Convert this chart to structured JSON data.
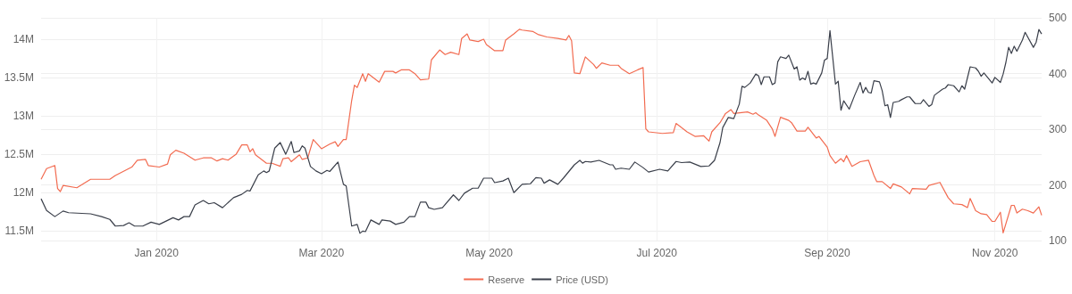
{
  "chart_data": {
    "type": "line",
    "xlim": [
      "2019-11-20",
      "2020-11-18"
    ],
    "xticks": [
      {
        "value": "2020-01-01",
        "label": "Jan 2020"
      },
      {
        "value": "2020-03-01",
        "label": "Mar 2020"
      },
      {
        "value": "2020-05-01",
        "label": "May 2020"
      },
      {
        "value": "2020-07-01",
        "label": "Jul 2020"
      },
      {
        "value": "2020-09-01",
        "label": "Sep 2020"
      },
      {
        "value": "2020-11-01",
        "label": "Nov 2020"
      }
    ],
    "ylim": [
      11.37,
      14.28
    ],
    "yticks": [
      {
        "value": 11.5,
        "label": "11.5M"
      },
      {
        "value": 12,
        "label": "12M"
      },
      {
        "value": 12.5,
        "label": "12.5M"
      },
      {
        "value": 13,
        "label": "13M"
      },
      {
        "value": 13.5,
        "label": "13.5M"
      },
      {
        "value": 14,
        "label": "14M"
      }
    ],
    "y2lim": [
      100,
      500
    ],
    "y2ticks": [
      100,
      200,
      300,
      400,
      500
    ],
    "grid": true,
    "legend": "bottom",
    "marker": "none",
    "series": [
      {
        "name": "Reserve",
        "color": "#f26b50",
        "x": [
          "2019-11-20",
          "2019-11-22",
          "2019-11-25",
          "2019-11-26",
          "2019-11-27",
          "2019-11-28",
          "2019-12-03",
          "2019-12-08",
          "2019-12-15",
          "2019-12-17",
          "2019-12-23",
          "2019-12-25",
          "2019-12-28",
          "2019-12-29",
          "2020-01-02",
          "2020-01-05",
          "2020-01-06",
          "2020-01-08",
          "2020-01-11",
          "2020-01-15",
          "2020-01-18",
          "2020-01-21",
          "2020-01-23",
          "2020-01-25",
          "2020-01-27",
          "2020-01-30",
          "2020-02-01",
          "2020-02-03",
          "2020-02-04",
          "2020-02-05",
          "2020-02-06",
          "2020-02-10",
          "2020-02-12",
          "2020-02-15",
          "2020-02-16",
          "2020-02-18",
          "2020-02-19",
          "2020-02-22",
          "2020-02-23",
          "2020-02-25",
          "2020-02-27",
          "2020-03-01",
          "2020-03-04",
          "2020-03-06",
          "2020-03-07",
          "2020-03-09",
          "2020-03-10",
          "2020-03-12",
          "2020-03-13",
          "2020-03-14",
          "2020-03-16",
          "2020-03-17",
          "2020-03-18",
          "2020-03-22",
          "2020-03-24",
          "2020-03-27",
          "2020-03-28",
          "2020-03-30",
          "2020-04-02",
          "2020-04-04",
          "2020-04-06",
          "2020-04-09",
          "2020-04-10",
          "2020-04-13",
          "2020-04-15",
          "2020-04-17",
          "2020-04-20",
          "2020-04-21",
          "2020-04-23",
          "2020-04-24",
          "2020-04-27",
          "2020-04-29",
          "2020-04-30",
          "2020-05-03",
          "2020-05-06",
          "2020-05-07",
          "2020-05-10",
          "2020-05-12",
          "2020-05-13",
          "2020-05-17",
          "2020-05-19",
          "2020-05-22",
          "2020-05-26",
          "2020-05-29",
          "2020-05-30",
          "2020-05-31",
          "2020-06-01",
          "2020-06-03",
          "2020-06-05",
          "2020-06-08",
          "2020-06-09",
          "2020-06-11",
          "2020-06-14",
          "2020-06-17",
          "2020-06-18",
          "2020-06-21",
          "2020-06-24",
          "2020-06-26",
          "2020-06-27",
          "2020-06-28",
          "2020-07-03",
          "2020-07-07",
          "2020-07-08",
          "2020-07-12",
          "2020-07-15",
          "2020-07-18",
          "2020-07-20",
          "2020-07-21",
          "2020-07-24",
          "2020-07-26",
          "2020-07-28",
          "2020-07-29",
          "2020-08-03",
          "2020-08-05",
          "2020-08-06",
          "2020-08-07",
          "2020-08-10",
          "2020-08-12",
          "2020-08-13",
          "2020-08-15",
          "2020-08-18",
          "2020-08-19",
          "2020-08-21",
          "2020-08-24",
          "2020-08-25",
          "2020-08-28",
          "2020-08-29",
          "2020-09-01",
          "2020-09-02",
          "2020-09-04",
          "2020-09-06",
          "2020-09-07",
          "2020-09-08",
          "2020-09-10",
          "2020-09-13",
          "2020-09-16",
          "2020-09-18",
          "2020-09-19",
          "2020-09-21",
          "2020-09-24",
          "2020-09-25",
          "2020-09-28",
          "2020-10-01",
          "2020-10-02",
          "2020-10-07",
          "2020-10-08",
          "2020-10-12",
          "2020-10-15",
          "2020-10-17",
          "2020-10-20",
          "2020-10-22",
          "2020-10-23",
          "2020-10-25",
          "2020-10-27",
          "2020-10-29",
          "2020-10-31",
          "2020-11-01",
          "2020-11-03",
          "2020-11-04",
          "2020-11-07",
          "2020-11-08",
          "2020-11-09",
          "2020-11-11",
          "2020-11-13",
          "2020-11-15",
          "2020-11-17",
          "2020-11-18"
        ],
        "values": [
          12.17,
          12.31,
          12.35,
          12.05,
          12.01,
          12.09,
          12.06,
          12.17,
          12.17,
          12.22,
          12.33,
          12.42,
          12.43,
          12.35,
          12.33,
          12.37,
          12.49,
          12.55,
          12.51,
          12.42,
          12.45,
          12.45,
          12.41,
          12.44,
          12.42,
          12.5,
          12.62,
          12.62,
          12.53,
          12.57,
          12.49,
          12.38,
          12.38,
          12.34,
          12.44,
          12.45,
          12.4,
          12.49,
          12.43,
          12.45,
          12.69,
          12.57,
          12.63,
          12.66,
          12.6,
          12.69,
          12.69,
          13.2,
          13.4,
          13.37,
          13.55,
          13.45,
          13.55,
          13.44,
          13.58,
          13.58,
          13.56,
          13.6,
          13.6,
          13.55,
          13.47,
          13.48,
          13.73,
          13.86,
          13.8,
          13.83,
          13.8,
          14.01,
          14.07,
          13.99,
          13.97,
          14.0,
          13.93,
          13.85,
          13.85,
          13.99,
          14.07,
          14.13,
          14.12,
          14.1,
          14.06,
          14.03,
          14.01,
          13.99,
          14.05,
          13.98,
          13.56,
          13.55,
          13.77,
          13.67,
          13.62,
          13.69,
          13.66,
          13.66,
          13.62,
          13.55,
          13.6,
          13.63,
          12.83,
          12.79,
          12.77,
          12.78,
          12.9,
          12.79,
          12.73,
          12.74,
          12.67,
          12.79,
          12.91,
          13.03,
          13.08,
          13.03,
          13.05,
          13.02,
          13.04,
          13.01,
          12.94,
          12.83,
          12.73,
          12.98,
          12.94,
          12.91,
          12.8,
          12.8,
          12.85,
          12.71,
          12.73,
          12.59,
          12.48,
          12.38,
          12.44,
          12.4,
          12.48,
          12.34,
          12.4,
          12.42,
          12.22,
          12.14,
          12.14,
          12.05,
          12.11,
          12.07,
          11.98,
          12.05,
          12.04,
          12.09,
          12.13,
          11.93,
          11.85,
          11.84,
          11.8,
          11.92,
          11.76,
          11.72,
          11.71,
          11.62,
          11.62,
          11.74,
          11.47,
          11.83,
          11.83,
          11.73,
          11.78,
          11.76,
          11.73,
          11.81,
          11.7
        ]
      },
      {
        "name": "Price (USD)",
        "color": "#3a3f4a",
        "axis": "y2",
        "x": [
          "2019-11-20",
          "2019-11-22",
          "2019-11-25",
          "2019-11-28",
          "2019-11-30",
          "2019-12-08",
          "2019-12-12",
          "2019-12-15",
          "2019-12-17",
          "2019-12-20",
          "2019-12-22",
          "2019-12-24",
          "2019-12-27",
          "2019-12-30",
          "2020-01-02",
          "2020-01-07",
          "2020-01-09",
          "2020-01-11",
          "2020-01-13",
          "2020-01-15",
          "2020-01-18",
          "2020-01-20",
          "2020-01-22",
          "2020-01-25",
          "2020-01-29",
          "2020-02-01",
          "2020-02-03",
          "2020-02-04",
          "2020-02-07",
          "2020-02-09",
          "2020-02-10",
          "2020-02-11",
          "2020-02-13",
          "2020-02-15",
          "2020-02-17",
          "2020-02-19",
          "2020-02-20",
          "2020-02-22",
          "2020-02-23",
          "2020-02-24",
          "2020-02-26",
          "2020-02-28",
          "2020-03-01",
          "2020-03-03",
          "2020-03-04",
          "2020-03-07",
          "2020-03-09",
          "2020-03-10",
          "2020-03-12",
          "2020-03-14",
          "2020-03-15",
          "2020-03-16",
          "2020-03-17",
          "2020-03-19",
          "2020-03-22",
          "2020-03-23",
          "2020-03-26",
          "2020-03-28",
          "2020-03-31",
          "2020-04-02",
          "2020-04-04",
          "2020-04-06",
          "2020-04-08",
          "2020-04-09",
          "2020-04-11",
          "2020-04-14",
          "2020-04-18",
          "2020-04-20",
          "2020-04-22",
          "2020-04-25",
          "2020-04-27",
          "2020-04-29",
          "2020-05-02",
          "2020-05-03",
          "2020-05-06",
          "2020-05-08",
          "2020-05-10",
          "2020-05-13",
          "2020-05-16",
          "2020-05-18",
          "2020-05-20",
          "2020-05-21",
          "2020-05-23",
          "2020-05-26",
          "2020-05-28",
          "2020-06-01",
          "2020-06-03",
          "2020-06-04",
          "2020-06-05",
          "2020-06-07",
          "2020-06-10",
          "2020-06-11",
          "2020-06-14",
          "2020-06-15",
          "2020-06-16",
          "2020-06-18",
          "2020-06-21",
          "2020-06-23",
          "2020-06-26",
          "2020-06-28",
          "2020-07-02",
          "2020-07-05",
          "2020-07-08",
          "2020-07-10",
          "2020-07-13",
          "2020-07-17",
          "2020-07-20",
          "2020-07-22",
          "2020-07-24",
          "2020-07-25",
          "2020-07-27",
          "2020-07-29",
          "2020-07-31",
          "2020-08-01",
          "2020-08-02",
          "2020-08-04",
          "2020-08-06",
          "2020-08-07",
          "2020-08-08",
          "2020-08-09",
          "2020-08-11",
          "2020-08-12",
          "2020-08-13",
          "2020-08-14",
          "2020-08-15",
          "2020-08-17",
          "2020-08-18",
          "2020-08-20",
          "2020-08-21",
          "2020-08-22",
          "2020-08-23",
          "2020-08-24",
          "2020-08-25",
          "2020-08-26",
          "2020-08-27",
          "2020-08-28",
          "2020-08-30",
          "2020-08-31",
          "2020-09-01",
          "2020-09-02",
          "2020-09-04",
          "2020-09-05",
          "2020-09-06",
          "2020-09-07",
          "2020-09-09",
          "2020-09-11",
          "2020-09-13",
          "2020-09-14",
          "2020-09-15",
          "2020-09-16",
          "2020-09-17",
          "2020-09-18",
          "2020-09-20",
          "2020-09-21",
          "2020-09-22",
          "2020-09-23",
          "2020-09-24",
          "2020-09-25",
          "2020-09-27",
          "2020-09-28",
          "2020-09-30",
          "2020-10-01",
          "2020-10-03",
          "2020-10-05",
          "2020-10-06",
          "2020-10-08",
          "2020-10-09",
          "2020-10-10",
          "2020-10-13",
          "2020-10-14",
          "2020-10-15",
          "2020-10-17",
          "2020-10-19",
          "2020-10-20",
          "2020-10-21",
          "2020-10-23",
          "2020-10-25",
          "2020-10-26",
          "2020-10-27",
          "2020-10-28",
          "2020-10-30",
          "2020-10-31",
          "2020-11-01",
          "2020-11-03",
          "2020-11-04",
          "2020-11-05",
          "2020-11-06",
          "2020-11-07",
          "2020-11-08",
          "2020-11-09",
          "2020-11-11",
          "2020-11-12",
          "2020-11-15",
          "2020-11-16",
          "2020-11-17",
          "2020-11-18"
        ],
        "values": [
          175,
          154,
          143,
          153,
          150,
          148,
          143,
          138,
          126,
          127,
          132,
          126,
          126,
          133,
          129,
          141,
          137,
          143,
          143,
          164,
          172,
          166,
          168,
          159,
          177,
          183,
          190,
          189,
          218,
          225,
          222,
          225,
          266,
          276,
          255,
          278,
          258,
          261,
          270,
          266,
          233,
          225,
          220,
          226,
          224,
          241,
          201,
          198,
          126,
          129,
          113,
          117,
          116,
          137,
          129,
          137,
          135,
          129,
          133,
          143,
          143,
          169,
          169,
          159,
          156,
          159,
          182,
          172,
          185,
          194,
          194,
          212,
          212,
          204,
          207,
          212,
          186,
          201,
          202,
          213,
          212,
          203,
          209,
          201,
          212,
          236,
          244,
          239,
          242,
          241,
          244,
          242,
          236,
          236,
          228,
          230,
          228,
          241,
          231,
          223,
          228,
          225,
          242,
          240,
          241,
          233,
          234,
          244,
          276,
          303,
          321,
          319,
          345,
          377,
          375,
          383,
          399,
          396,
          380,
          394,
          394,
          380,
          383,
          421,
          430,
          427,
          433,
          408,
          412,
          388,
          392,
          389,
          404,
          381,
          383,
          381,
          401,
          424,
          427,
          477,
          381,
          386,
          334,
          351,
          336,
          361,
          384,
          365,
          375,
          366,
          365,
          387,
          385,
          369,
          342,
          344,
          321,
          348,
          350,
          353,
          358,
          358,
          346,
          346,
          353,
          341,
          344,
          361,
          372,
          374,
          380,
          378,
          367,
          378,
          372,
          412,
          410,
          404,
          395,
          401,
          389,
          383,
          393,
          384,
          399,
          420,
          447,
          436,
          449,
          440,
          460,
          474,
          447,
          456,
          479,
          471
        ]
      }
    ]
  }
}
